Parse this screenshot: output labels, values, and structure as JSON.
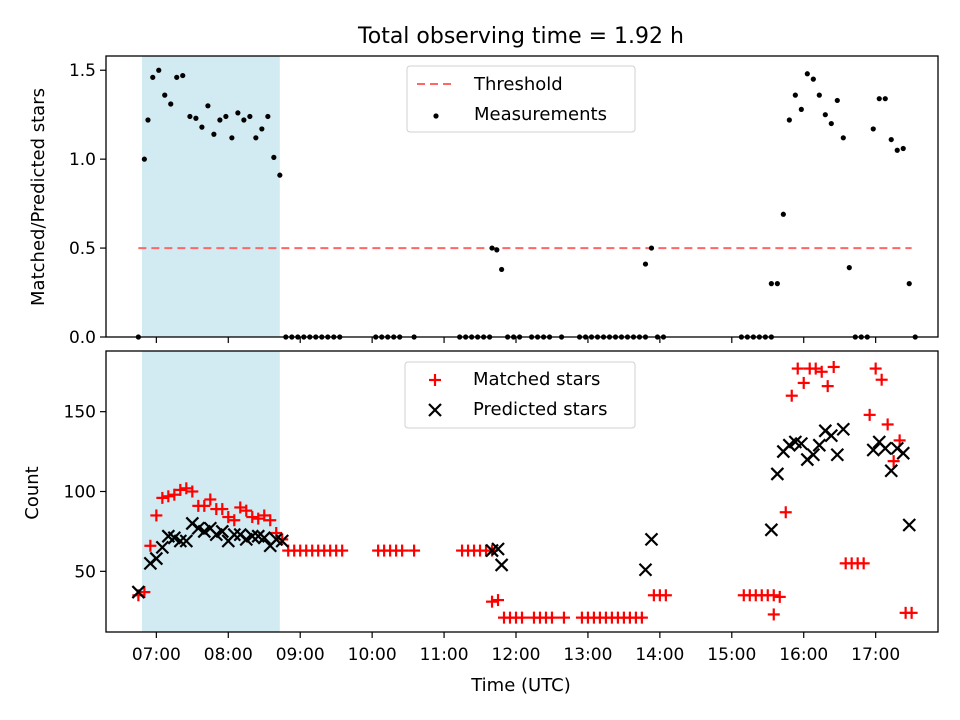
{
  "figure": {
    "title": "Total observing time = 1.92 h",
    "xlabel": "Time (UTC)",
    "x_ticks": [
      "07:00",
      "08:00",
      "09:00",
      "10:00",
      "11:00",
      "12:00",
      "13:00",
      "14:00",
      "15:00",
      "16:00",
      "17:00"
    ],
    "shaded_region": {
      "start": "06:48",
      "end": "08:43",
      "color": "#add8e6"
    }
  },
  "chart_data": [
    {
      "type": "scatter",
      "ylabel": "Matched/Predicted stars",
      "ylim": [
        0,
        1.58
      ],
      "y_ticks": [
        "0.0",
        "0.5",
        "1.0",
        "1.5"
      ],
      "threshold": {
        "name": "Threshold",
        "value": 0.5,
        "from": "06:45",
        "to": "17:30",
        "color": "#ff6666"
      },
      "legend_placement": "top-center",
      "series": [
        {
          "name": "Measurements",
          "color": "#000000",
          "points": [
            [
              "06:45",
              0.0
            ],
            [
              "06:50",
              1.0
            ],
            [
              "06:53",
              1.22
            ],
            [
              "06:57",
              1.46
            ],
            [
              "07:02",
              1.5
            ],
            [
              "07:07",
              1.36
            ],
            [
              "07:12",
              1.31
            ],
            [
              "07:17",
              1.46
            ],
            [
              "07:22",
              1.47
            ],
            [
              "07:28",
              1.24
            ],
            [
              "07:33",
              1.23
            ],
            [
              "07:38",
              1.18
            ],
            [
              "07:43",
              1.3
            ],
            [
              "07:48",
              1.14
            ],
            [
              "07:53",
              1.22
            ],
            [
              "07:58",
              1.24
            ],
            [
              "08:03",
              1.12
            ],
            [
              "08:08",
              1.26
            ],
            [
              "08:13",
              1.22
            ],
            [
              "08:18",
              1.24
            ],
            [
              "08:23",
              1.12
            ],
            [
              "08:28",
              1.17
            ],
            [
              "08:33",
              1.24
            ],
            [
              "08:38",
              1.01
            ],
            [
              "08:43",
              0.91
            ],
            [
              "08:48",
              0.0
            ],
            [
              "08:53",
              0.0
            ],
            [
              "08:58",
              0.0
            ],
            [
              "09:03",
              0.0
            ],
            [
              "09:08",
              0.0
            ],
            [
              "09:13",
              0.0
            ],
            [
              "09:18",
              0.0
            ],
            [
              "09:23",
              0.0
            ],
            [
              "09:28",
              0.0
            ],
            [
              "09:33",
              0.0
            ],
            [
              "10:03",
              0.0
            ],
            [
              "10:08",
              0.0
            ],
            [
              "10:13",
              0.0
            ],
            [
              "10:18",
              0.0
            ],
            [
              "10:23",
              0.0
            ],
            [
              "10:35",
              0.0
            ],
            [
              "11:13",
              0.0
            ],
            [
              "11:18",
              0.0
            ],
            [
              "11:23",
              0.0
            ],
            [
              "11:28",
              0.0
            ],
            [
              "11:33",
              0.0
            ],
            [
              "11:38",
              0.0
            ],
            [
              "11:40",
              0.5
            ],
            [
              "11:44",
              0.49
            ],
            [
              "11:48",
              0.38
            ],
            [
              "11:53",
              0.0
            ],
            [
              "11:58",
              0.0
            ],
            [
              "12:03",
              0.0
            ],
            [
              "12:13",
              0.0
            ],
            [
              "12:18",
              0.0
            ],
            [
              "12:23",
              0.0
            ],
            [
              "12:28",
              0.0
            ],
            [
              "12:38",
              0.0
            ],
            [
              "12:53",
              0.0
            ],
            [
              "12:58",
              0.0
            ],
            [
              "13:03",
              0.0
            ],
            [
              "13:08",
              0.0
            ],
            [
              "13:13",
              0.0
            ],
            [
              "13:18",
              0.0
            ],
            [
              "13:23",
              0.0
            ],
            [
              "13:28",
              0.0
            ],
            [
              "13:33",
              0.0
            ],
            [
              "13:38",
              0.0
            ],
            [
              "13:43",
              0.0
            ],
            [
              "13:48",
              0.0
            ],
            [
              "13:48",
              0.41
            ],
            [
              "13:53",
              0.5
            ],
            [
              "13:58",
              0.0
            ],
            [
              "14:03",
              0.0
            ],
            [
              "15:08",
              0.0
            ],
            [
              "15:13",
              0.0
            ],
            [
              "15:18",
              0.0
            ],
            [
              "15:23",
              0.0
            ],
            [
              "15:28",
              0.0
            ],
            [
              "15:33",
              0.0
            ],
            [
              "15:33",
              0.3
            ],
            [
              "15:38",
              0.3
            ],
            [
              "15:43",
              0.69
            ],
            [
              "15:48",
              1.22
            ],
            [
              "15:53",
              1.36
            ],
            [
              "15:58",
              1.28
            ],
            [
              "16:03",
              1.48
            ],
            [
              "16:08",
              1.45
            ],
            [
              "16:13",
              1.36
            ],
            [
              "16:18",
              1.25
            ],
            [
              "16:23",
              1.2
            ],
            [
              "16:28",
              1.33
            ],
            [
              "16:33",
              1.12
            ],
            [
              "16:38",
              0.39
            ],
            [
              "16:43",
              0.0
            ],
            [
              "16:48",
              0.0
            ],
            [
              "16:53",
              0.0
            ],
            [
              "16:58",
              1.17
            ],
            [
              "17:03",
              1.34
            ],
            [
              "17:08",
              1.34
            ],
            [
              "17:13",
              1.11
            ],
            [
              "17:18",
              1.05
            ],
            [
              "17:23",
              1.06
            ],
            [
              "17:28",
              0.3
            ],
            [
              "17:33",
              0.0
            ]
          ]
        }
      ]
    },
    {
      "type": "scatter",
      "ylabel": "Count",
      "ylim": [
        12,
        188
      ],
      "y_ticks": [
        "50",
        "100",
        "150"
      ],
      "legend_placement": "top-center",
      "series": [
        {
          "name": "Matched stars",
          "color": "#ff0000",
          "points": [
            [
              "06:45",
              35
            ],
            [
              "06:50",
              37
            ],
            [
              "06:55",
              66
            ],
            [
              "07:00",
              85
            ],
            [
              "07:05",
              96
            ],
            [
              "07:10",
              97
            ],
            [
              "07:15",
              98
            ],
            [
              "07:20",
              101
            ],
            [
              "07:25",
              102
            ],
            [
              "07:30",
              100
            ],
            [
              "07:35",
              91
            ],
            [
              "07:40",
              91
            ],
            [
              "07:45",
              95
            ],
            [
              "07:50",
              89
            ],
            [
              "07:55",
              89
            ],
            [
              "08:00",
              84
            ],
            [
              "08:05",
              82
            ],
            [
              "08:10",
              90
            ],
            [
              "08:15",
              88
            ],
            [
              "08:20",
              84
            ],
            [
              "08:25",
              83
            ],
            [
              "08:30",
              85
            ],
            [
              "08:35",
              82
            ],
            [
              "08:40",
              74
            ],
            [
              "08:45",
              70
            ],
            [
              "08:50",
              63
            ],
            [
              "08:55",
              63
            ],
            [
              "09:00",
              63
            ],
            [
              "09:05",
              63
            ],
            [
              "09:10",
              63
            ],
            [
              "09:15",
              63
            ],
            [
              "09:20",
              63
            ],
            [
              "09:25",
              63
            ],
            [
              "09:30",
              63
            ],
            [
              "09:35",
              63
            ],
            [
              "10:05",
              63
            ],
            [
              "10:10",
              63
            ],
            [
              "10:15",
              63
            ],
            [
              "10:20",
              63
            ],
            [
              "10:25",
              63
            ],
            [
              "10:35",
              63
            ],
            [
              "11:15",
              63
            ],
            [
              "11:20",
              63
            ],
            [
              "11:25",
              63
            ],
            [
              "11:30",
              63
            ],
            [
              "11:35",
              63
            ],
            [
              "11:40",
              63
            ],
            [
              "11:40",
              31
            ],
            [
              "11:45",
              32
            ],
            [
              "11:50",
              21
            ],
            [
              "11:55",
              21
            ],
            [
              "12:00",
              21
            ],
            [
              "12:05",
              21
            ],
            [
              "12:15",
              21
            ],
            [
              "12:20",
              21
            ],
            [
              "12:25",
              21
            ],
            [
              "12:30",
              21
            ],
            [
              "12:40",
              21
            ],
            [
              "12:55",
              21
            ],
            [
              "13:00",
              21
            ],
            [
              "13:05",
              21
            ],
            [
              "13:10",
              21
            ],
            [
              "13:15",
              21
            ],
            [
              "13:20",
              21
            ],
            [
              "13:25",
              21
            ],
            [
              "13:30",
              21
            ],
            [
              "13:35",
              21
            ],
            [
              "13:40",
              21
            ],
            [
              "13:45",
              21
            ],
            [
              "13:55",
              35
            ],
            [
              "14:00",
              35
            ],
            [
              "14:05",
              35
            ],
            [
              "15:10",
              35
            ],
            [
              "15:15",
              35
            ],
            [
              "15:20",
              35
            ],
            [
              "15:25",
              35
            ],
            [
              "15:30",
              35
            ],
            [
              "15:35",
              35
            ],
            [
              "15:35",
              23
            ],
            [
              "15:40",
              34
            ],
            [
              "15:45",
              87
            ],
            [
              "15:50",
              160
            ],
            [
              "15:55",
              177
            ],
            [
              "16:00",
              168
            ],
            [
              "16:05",
              177
            ],
            [
              "16:10",
              177
            ],
            [
              "16:15",
              175
            ],
            [
              "16:20",
              166
            ],
            [
              "16:25",
              178
            ],
            [
              "16:35",
              55
            ],
            [
              "16:40",
              55
            ],
            [
              "16:45",
              55
            ],
            [
              "16:50",
              55
            ],
            [
              "16:55",
              148
            ],
            [
              "17:00",
              177
            ],
            [
              "17:05",
              170
            ],
            [
              "17:10",
              142
            ],
            [
              "17:15",
              119
            ],
            [
              "17:20",
              132
            ],
            [
              "17:25",
              24
            ],
            [
              "17:30",
              24
            ]
          ]
        },
        {
          "name": "Predicted stars",
          "color": "#000000",
          "points": [
            [
              "06:45",
              37
            ],
            [
              "06:55",
              55
            ],
            [
              "07:00",
              58
            ],
            [
              "07:05",
              65
            ],
            [
              "07:10",
              72
            ],
            [
              "07:15",
              71
            ],
            [
              "07:20",
              69
            ],
            [
              "07:25",
              69
            ],
            [
              "07:30",
              80
            ],
            [
              "07:35",
              77
            ],
            [
              "07:40",
              75
            ],
            [
              "07:45",
              77
            ],
            [
              "07:50",
              73
            ],
            [
              "07:55",
              75
            ],
            [
              "08:00",
              69
            ],
            [
              "08:05",
              73
            ],
            [
              "08:10",
              73
            ],
            [
              "08:15",
              70
            ],
            [
              "08:20",
              72
            ],
            [
              "08:25",
              72
            ],
            [
              "08:30",
              71
            ],
            [
              "08:35",
              66
            ],
            [
              "08:40",
              70
            ],
            [
              "08:45",
              69
            ],
            [
              "11:40",
              63
            ],
            [
              "11:45",
              64
            ],
            [
              "11:48",
              54
            ],
            [
              "13:48",
              51
            ],
            [
              "13:53",
              70
            ],
            [
              "15:33",
              76
            ],
            [
              "15:38",
              111
            ],
            [
              "15:43",
              125
            ],
            [
              "15:48",
              129
            ],
            [
              "15:53",
              131
            ],
            [
              "15:58",
              130
            ],
            [
              "16:03",
              120
            ],
            [
              "16:08",
              123
            ],
            [
              "16:13",
              129
            ],
            [
              "16:18",
              138
            ],
            [
              "16:23",
              135
            ],
            [
              "16:28",
              123
            ],
            [
              "16:33",
              139
            ],
            [
              "16:58",
              126
            ],
            [
              "17:03",
              131
            ],
            [
              "17:08",
              127
            ],
            [
              "17:13",
              113
            ],
            [
              "17:18",
              127
            ],
            [
              "17:23",
              124
            ],
            [
              "17:28",
              79
            ]
          ]
        }
      ]
    }
  ]
}
